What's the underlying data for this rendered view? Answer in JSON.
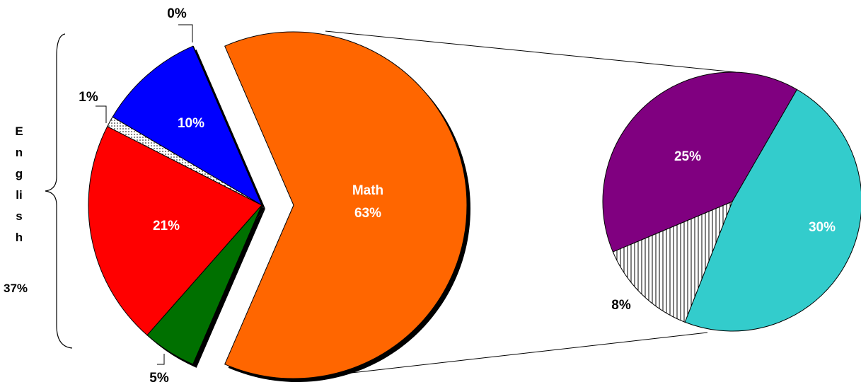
{
  "chart_data": {
    "type": "pie-of-pie",
    "main": {
      "labels": [
        null,
        null,
        null,
        null,
        null,
        "Math"
      ],
      "values": [
        0,
        10,
        1,
        21,
        5,
        63
      ],
      "value_labels": [
        "0%",
        "10%",
        "1%",
        "21%",
        "5%",
        "63%"
      ],
      "colors": [
        "#ffff00",
        "#0000ff",
        "dots",
        "#ff0000",
        "#007000",
        "#ff6600"
      ]
    },
    "group": {
      "label": "English",
      "value": 37,
      "value_label": "37%"
    },
    "secondary": {
      "values": [
        25,
        30,
        8
      ],
      "value_labels": [
        "25%",
        "30%",
        "8%"
      ],
      "colors": [
        "#800080",
        "#33cccc",
        "hatch"
      ]
    }
  }
}
